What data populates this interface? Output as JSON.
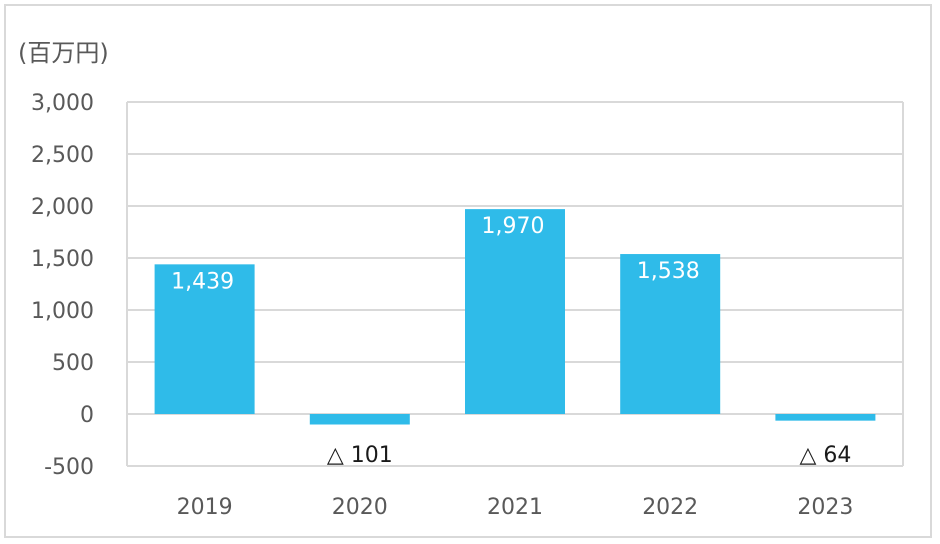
{
  "chart_data": {
    "type": "bar",
    "unit_label": "(百万円)",
    "categories": [
      "2019",
      "2020",
      "2021",
      "2022",
      "2023"
    ],
    "values": [
      1439,
      -101,
      1970,
      1538,
      -64
    ],
    "data_labels": [
      "1,439",
      "△ 101",
      "1,970",
      "1,538",
      "△ 64"
    ],
    "ylim": [
      -500,
      3000
    ],
    "yticks": [
      3000,
      2500,
      2000,
      1500,
      1000,
      500,
      0,
      -500
    ],
    "ytick_labels": [
      "3,000",
      "2,500",
      "2,000",
      "1,500",
      "1,000",
      "500",
      "0",
      "-500"
    ],
    "grid": true,
    "legend": "none",
    "colors": {
      "bar": "#2fbbe9",
      "grid": "#d9d9d9",
      "axis_text": "#595959",
      "border": "#d9d9d9"
    }
  }
}
